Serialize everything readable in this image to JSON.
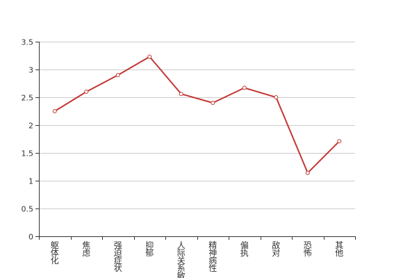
{
  "chart_data": {
    "type": "line",
    "categories": [
      "躯体化",
      "焦虑",
      "强迫症状",
      "抑郁",
      "人际关系敏感",
      "精神病性",
      "偏执",
      "敌对",
      "恐怖",
      "其他"
    ],
    "series": [
      {
        "values": [
          2.25,
          2.6,
          2.9,
          3.23,
          2.56,
          2.4,
          2.67,
          2.5,
          1.14,
          1.71
        ]
      }
    ],
    "ylim": [
      0,
      3.5
    ],
    "yticks": [
      "0",
      "0.5",
      "1",
      "1.5",
      "2",
      "2.5",
      "3",
      "3.5"
    ],
    "grid": true,
    "colors": {
      "line": "#c23531",
      "grid": "#cccccc",
      "axis": "#333333"
    }
  }
}
